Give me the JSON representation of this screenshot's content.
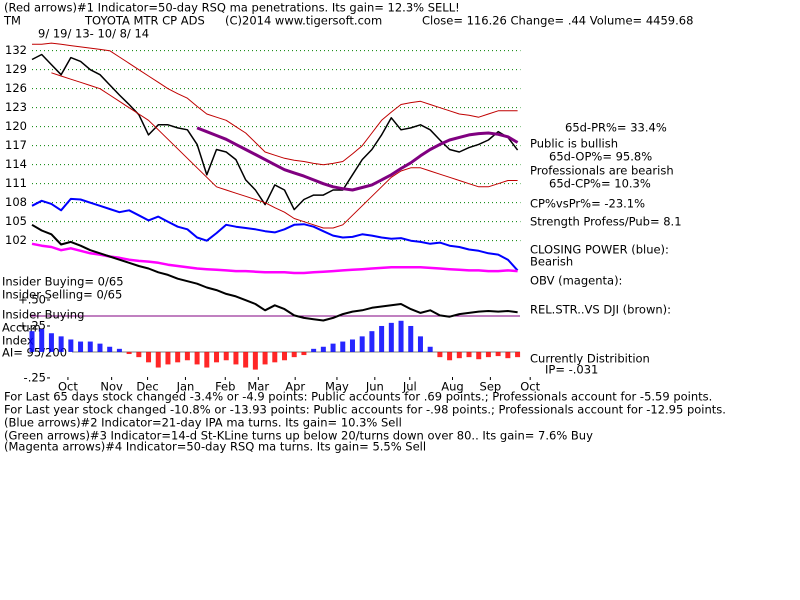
{
  "chart_data": {
    "type": "line",
    "title": "(Red arrows)#1 Indicator=50-day RSQ ma penetrations. Its gain= 12.3% SELL!",
    "annotations": [
      "TM",
      "TOYOTA MTR CP ADS",
      "(C)2014 www.tigersoft.com",
      "Close=  116.26  Change= .44 Volume= 4459.68",
      "9/ 19/ 13- 10/ 8/ 14",
      "65d-PR%= 33.4%",
      "Public is bullish",
      "65d-OP%= 95.8%",
      "Professionals are bearish",
      "65d-CP%= 10.3%",
      "CP%vsPr%= -23.1%",
      "Strength Profess/Pub= 8.1",
      "CLOSING POWER (blue):",
      "Bearish",
      "OBV (magenta):",
      "REL.STR..VS DJI (brown):",
      "Currently Distribition",
      "IP= -.031",
      "Insider Buying= 0/65",
      "Insider Selling= 0/65",
      "Insider Buying",
      "Accum",
      "Index",
      "AI= 95/200",
      "For Last 65 days stock changed -3.4% or -4.9 points:  Public accounts for  .69 points.;  Professionals account for -5.59 points.",
      "For Last year stock changed -10.8% or -13.93 points:  Public accounts for -.98 points.;  Professionals account for -12.95 points.",
      "(Blue arrows)#2 Indicator=21-day IPA ma turns. Its gain= 10.3% Sell",
      "(Green arrows)#3 Indicator=14-d St-KLine turns up below 20/turns down over 80.. Its gain= 7.6% Buy",
      "(Magenta arrows)#4 Indicator=50-day RSQ ma turns. Its gain= 5.5% Sell"
    ],
    "x": [
      0,
      1,
      2,
      3,
      4,
      5,
      6,
      7,
      8,
      9,
      10,
      11,
      12,
      13,
      14,
      15,
      16,
      17,
      18,
      19,
      20,
      21,
      22,
      23,
      24,
      25,
      26,
      27,
      28,
      29,
      30,
      31,
      32,
      33,
      34,
      35,
      36,
      37,
      38,
      39,
      40,
      41,
      42,
      43,
      44,
      45,
      46,
      47,
      48,
      49,
      50
    ],
    "xlim": [
      0,
      52
    ],
    "xticks": [
      {
        "value": 3.7,
        "label": "Oct"
      },
      {
        "value": 8.2,
        "label": "Nov"
      },
      {
        "value": 11.9,
        "label": "Dec"
      },
      {
        "value": 15.8,
        "label": "Jan"
      },
      {
        "value": 19.9,
        "label": "Feb"
      },
      {
        "value": 23.3,
        "label": "Mar"
      },
      {
        "value": 27.1,
        "label": "Apr"
      },
      {
        "value": 31.4,
        "label": "May"
      },
      {
        "value": 35.3,
        "label": "Jun"
      },
      {
        "value": 38.9,
        "label": "Jul"
      },
      {
        "value": 43.3,
        "label": "Aug"
      },
      {
        "value": 47.2,
        "label": "Sep"
      },
      {
        "value": 51.3,
        "label": "Oct"
      }
    ],
    "ylim": [
      80,
      134
    ],
    "yticks": [
      132,
      129,
      126,
      123,
      120,
      117,
      114,
      111,
      108,
      105,
      102
    ],
    "grid": true,
    "grid_color": "#008000",
    "series": [
      {
        "color": "#000000",
        "width": 1.5,
        "values": [
          130.6,
          131.4,
          129.8,
          128.2,
          130.9,
          130.3,
          129,
          128.2,
          126.6,
          125,
          123.5,
          121.9,
          118.7,
          120.3,
          120.3,
          119.8,
          119.5,
          117.2,
          112.4,
          116.4,
          116,
          114.8,
          111.6,
          110,
          107.7,
          110.8,
          110,
          106.9,
          108.5,
          109.2,
          109.2,
          110,
          110,
          112.4,
          114.8,
          116.4,
          118.7,
          121.4,
          119.5,
          119.8,
          120.3,
          119.5,
          117.9,
          116.4,
          116,
          116.7,
          117.2,
          117.9,
          119.2,
          118.3,
          116.3
        ]
      },
      {
        "color": "#c00000",
        "width": 1,
        "values": [
          133,
          133,
          133.2,
          133,
          132.8,
          132.6,
          132.4,
          132.2,
          132,
          131,
          130,
          129,
          128,
          127,
          126,
          125.2,
          124.5,
          123.2,
          122,
          121.5,
          121,
          120,
          119,
          117.5,
          116,
          115.5,
          115,
          114.7,
          114.5,
          114.2,
          114,
          114.2,
          114.5,
          115.7,
          117,
          119,
          121,
          122.3,
          123.5,
          123.8,
          124,
          123.5,
          123,
          122.5,
          122,
          121.8,
          121.5,
          122,
          122.5,
          122.5,
          122.5
        ]
      },
      {
        "color": "#c00000",
        "width": 1,
        "values": [
          null,
          null,
          128.5,
          128,
          127.5,
          127,
          126.5,
          126,
          125,
          124,
          123,
          122,
          121,
          119.5,
          118,
          116.5,
          115,
          113.5,
          112,
          110.5,
          110,
          109.5,
          109,
          108.5,
          108,
          107.2,
          106.5,
          105.5,
          105,
          104.5,
          104,
          104,
          104.5,
          106,
          107.5,
          109,
          110.5,
          112,
          113,
          113.5,
          113.5,
          113,
          112.5,
          112,
          111.5,
          111,
          110.5,
          110.5,
          111,
          111.5,
          111.5
        ]
      },
      {
        "color": "#800080",
        "width": 3,
        "values": [
          null,
          null,
          null,
          null,
          null,
          null,
          null,
          null,
          null,
          null,
          null,
          null,
          null,
          null,
          null,
          null,
          null,
          119.8,
          119.2,
          118.6,
          118,
          117.2,
          116.4,
          115.6,
          114.8,
          114,
          113.2,
          112.7,
          112.2,
          111.6,
          111,
          110.5,
          110.2,
          110,
          110.4,
          110.8,
          111.6,
          112.4,
          113.4,
          114.3,
          115.4,
          116.4,
          117.2,
          117.9,
          118.3,
          118.7,
          118.9,
          119,
          118.8,
          118.4,
          117.5
        ]
      },
      {
        "color": "#0000ff",
        "width": 2,
        "values": [
          107.5,
          108.3,
          107.8,
          106.8,
          108.6,
          108.5,
          108,
          107.5,
          107,
          106.5,
          106.8,
          106,
          105.2,
          105.8,
          105,
          104.2,
          103.8,
          102.5,
          102,
          103.2,
          104.5,
          104.2,
          104,
          103.8,
          103.5,
          103.3,
          103.8,
          104.5,
          104.6,
          104.2,
          103.5,
          102.8,
          102.5,
          102.6,
          103,
          102.8,
          102.5,
          102.3,
          102.4,
          102,
          101.8,
          101.5,
          101.7,
          101.2,
          101,
          100.6,
          100.4,
          100,
          99.8,
          99,
          97.3
        ]
      },
      {
        "color": "#ff00ff",
        "width": 2.5,
        "values": [
          101.5,
          101.2,
          101,
          100.5,
          100.8,
          100.4,
          100,
          99.8,
          99.5,
          99.3,
          99,
          98.8,
          98.7,
          98.5,
          98.2,
          98,
          97.8,
          97.6,
          97.5,
          97.4,
          97.3,
          97.2,
          97.2,
          97.1,
          97,
          97,
          97,
          96.9,
          96.9,
          97,
          97.1,
          97.2,
          97.3,
          97.4,
          97.5,
          97.6,
          97.7,
          97.8,
          97.8,
          97.8,
          97.8,
          97.7,
          97.6,
          97.5,
          97.4,
          97.3,
          97.3,
          97.2,
          97.2,
          97.3,
          97.2
        ]
      },
      {
        "color": "#000000",
        "width": 2,
        "values": [
          104.5,
          103.6,
          103,
          101.4,
          101.8,
          101.2,
          100.5,
          100,
          99.5,
          99,
          98.5,
          98,
          97.6,
          97,
          96.6,
          96,
          95.6,
          95.2,
          94.6,
          94.2,
          93.6,
          93.2,
          92.6,
          92,
          91,
          91.8,
          91.2,
          90.2,
          89.8,
          89.6,
          89.4,
          89.8,
          90.4,
          90.8,
          91,
          91.4,
          91.6,
          91.8,
          92,
          91.2,
          90.6,
          91,
          90.2,
          90,
          90.4,
          90.6,
          90.8,
          90.9,
          90.8,
          90.9,
          90.7
        ]
      }
    ],
    "accum": {
      "ylim": [
        -0.27,
        0.5
      ],
      "yticks": [
        {
          "value": 0.5,
          "label": "+.50"
        },
        {
          "value": 0.25,
          "label": "+.25"
        },
        {
          "value": -0.25,
          "label": "-.25"
        }
      ],
      "pos_color": "#0000ff",
      "neg_color": "#ff0000",
      "values": [
        0.2,
        0.22,
        0.18,
        0.15,
        0.12,
        0.1,
        0.1,
        0.08,
        0.05,
        0.03,
        -0.02,
        -0.05,
        -0.1,
        -0.15,
        -0.12,
        -0.1,
        -0.08,
        -0.12,
        -0.15,
        -0.1,
        -0.08,
        -0.12,
        -0.15,
        -0.17,
        -0.12,
        -0.1,
        -0.08,
        -0.05,
        -0.03,
        0.03,
        0.05,
        0.08,
        0.1,
        0.12,
        0.15,
        0.2,
        0.25,
        0.28,
        0.3,
        0.25,
        0.15,
        0.05,
        -0.05,
        -0.08,
        -0.06,
        -0.05,
        -0.07,
        -0.05,
        -0.04,
        -0.06,
        -0.05
      ]
    }
  }
}
